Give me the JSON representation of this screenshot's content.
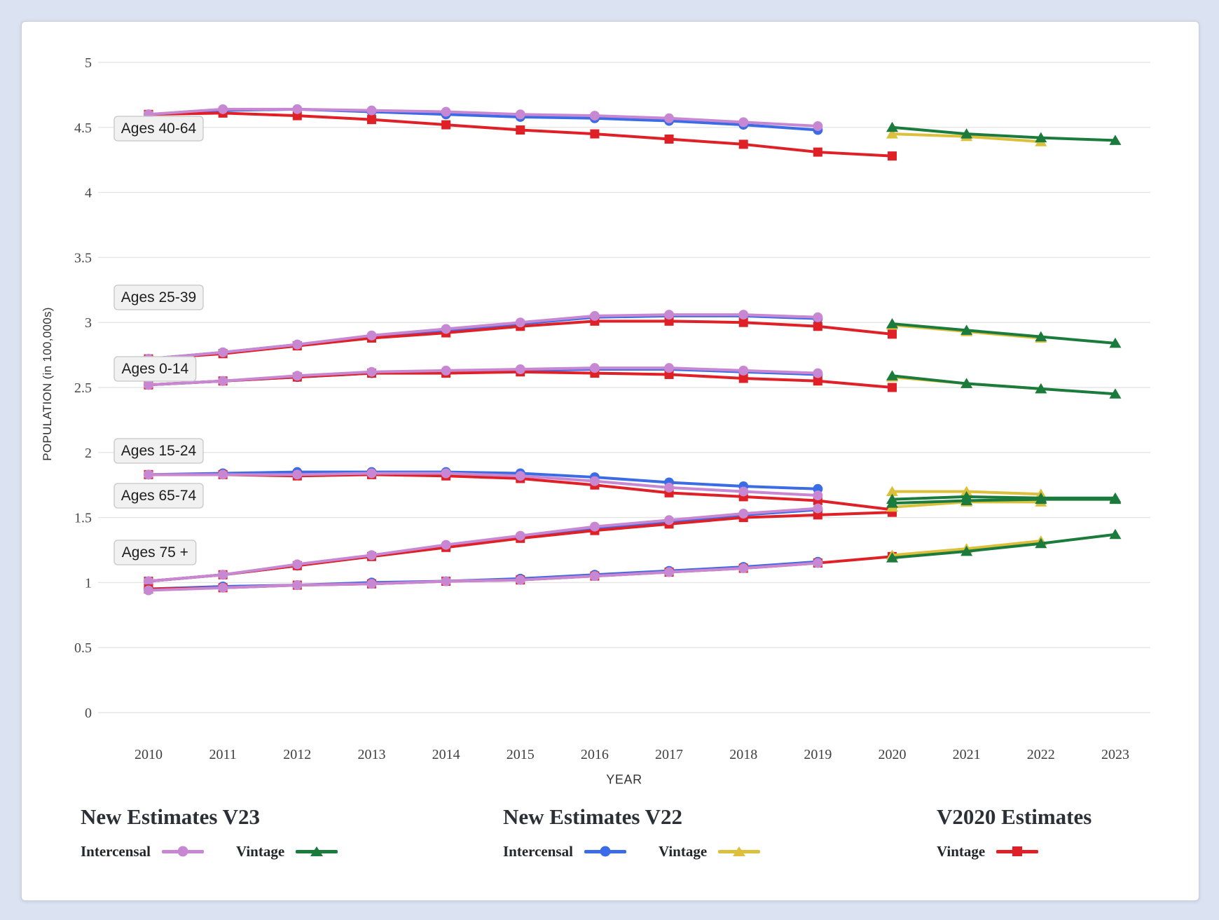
{
  "page": {
    "background": "#dbe2f1",
    "card_background": "#ffffff"
  },
  "chart": {
    "y_axis_title": "POPULATION (in 100,000s)",
    "x_axis_title": "YEAR",
    "y_ticks": [
      "5",
      "4.5",
      "4",
      "3.5",
      "3",
      "2.5",
      "2",
      "1.5",
      "1",
      "0.5",
      "0"
    ],
    "x_ticks": [
      "2010",
      "2011",
      "2012",
      "2013",
      "2014",
      "2015",
      "2016",
      "2017",
      "2018",
      "2019",
      "2020",
      "2021",
      "2022",
      "2023"
    ]
  },
  "colors": {
    "grid": "#e5e5e5",
    "tick_text": "#474747",
    "annotation_box_bg": "#f1f1f1",
    "annotation_box_border": "#c6c6c6",
    "annotation_text": "#1e1e1e",
    "v23_intercensal": "#c887d2",
    "v23_vintage": "#1b7b3d",
    "v22_intercensal": "#3c6be6",
    "v22_vintage": "#dcbf3b",
    "v2020_vintage": "#df2026"
  },
  "chart_data": {
    "type": "line",
    "title": "",
    "xlabel": "YEAR",
    "ylabel": "POPULATION (in 100,000s)",
    "x": [
      2010,
      2011,
      2012,
      2013,
      2014,
      2015,
      2016,
      2017,
      2018,
      2019,
      2020,
      2021,
      2022,
      2023
    ],
    "ylim": [
      0,
      5
    ],
    "grid": "horizontal",
    "legend_position": "bottom",
    "series_styles": {
      "v23_intercensal": {
        "color": "#c887d2",
        "marker": "circle",
        "legend_group": "New Estimates V23",
        "legend_label": "Intercensal"
      },
      "v23_vintage": {
        "color": "#1b7b3d",
        "marker": "triangle",
        "legend_group": "New Estimates V23",
        "legend_label": "Vintage"
      },
      "v22_intercensal": {
        "color": "#3c6be6",
        "marker": "circle",
        "legend_group": "New Estimates V22",
        "legend_label": "Intercensal"
      },
      "v22_vintage": {
        "color": "#dcbf3b",
        "marker": "triangle",
        "legend_group": "New Estimates V22",
        "legend_label": "Vintage"
      },
      "v2020_vintage": {
        "color": "#df2026",
        "marker": "square",
        "legend_group": "V2020 Estimates",
        "legend_label": "Vintage"
      }
    },
    "groups": [
      {
        "label": "Ages 40-64",
        "series": [
          {
            "name": "v22_intercensal",
            "start_year": 2010,
            "values": [
              4.6,
              4.63,
              4.64,
              4.62,
              4.6,
              4.58,
              4.57,
              4.55,
              4.52,
              4.48
            ]
          },
          {
            "name": "v2020_vintage",
            "start_year": 2010,
            "values": [
              4.6,
              4.61,
              4.59,
              4.56,
              4.52,
              4.48,
              4.45,
              4.41,
              4.37,
              4.31,
              4.28
            ]
          },
          {
            "name": "v23_intercensal",
            "start_year": 2010,
            "values": [
              4.6,
              4.64,
              4.64,
              4.63,
              4.62,
              4.6,
              4.59,
              4.57,
              4.54,
              4.51
            ]
          },
          {
            "name": "v22_vintage",
            "start_year": 2020,
            "values": [
              4.45,
              4.43,
              4.39
            ]
          },
          {
            "name": "v23_vintage",
            "start_year": 2020,
            "values": [
              4.5,
              4.45,
              4.42,
              4.4
            ]
          }
        ]
      },
      {
        "label": "Ages 25-39",
        "series": [
          {
            "name": "v22_intercensal",
            "start_year": 2010,
            "values": [
              2.72,
              2.77,
              2.83,
              2.89,
              2.94,
              2.99,
              3.04,
              3.05,
              3.05,
              3.03
            ]
          },
          {
            "name": "v2020_vintage",
            "start_year": 2010,
            "values": [
              2.72,
              2.76,
              2.82,
              2.88,
              2.92,
              2.97,
              3.01,
              3.01,
              3.0,
              2.97,
              2.91
            ]
          },
          {
            "name": "v23_intercensal",
            "start_year": 2010,
            "values": [
              2.72,
              2.77,
              2.83,
              2.9,
              2.95,
              3.0,
              3.05,
              3.06,
              3.06,
              3.04
            ]
          },
          {
            "name": "v22_vintage",
            "start_year": 2020,
            "values": [
              2.98,
              2.93,
              2.88
            ]
          },
          {
            "name": "v23_vintage",
            "start_year": 2020,
            "values": [
              2.99,
              2.94,
              2.89,
              2.84
            ]
          }
        ]
      },
      {
        "label": "Ages 0-14",
        "series": [
          {
            "name": "v22_intercensal",
            "start_year": 2010,
            "values": [
              2.52,
              2.55,
              2.58,
              2.61,
              2.62,
              2.63,
              2.64,
              2.64,
              2.62,
              2.6
            ]
          },
          {
            "name": "v2020_vintage",
            "start_year": 2010,
            "values": [
              2.52,
              2.55,
              2.58,
              2.61,
              2.61,
              2.62,
              2.61,
              2.6,
              2.57,
              2.55,
              2.5
            ]
          },
          {
            "name": "v23_intercensal",
            "start_year": 2010,
            "values": [
              2.52,
              2.55,
              2.59,
              2.62,
              2.63,
              2.64,
              2.65,
              2.65,
              2.63,
              2.61
            ]
          },
          {
            "name": "v22_vintage",
            "start_year": 2020,
            "values": [
              2.58,
              2.53,
              2.49
            ]
          },
          {
            "name": "v23_vintage",
            "start_year": 2020,
            "values": [
              2.59,
              2.53,
              2.49,
              2.45
            ]
          }
        ]
      },
      {
        "label": "Ages 15-24",
        "series": [
          {
            "name": "v22_intercensal",
            "start_year": 2010,
            "values": [
              1.83,
              1.84,
              1.85,
              1.85,
              1.85,
              1.84,
              1.81,
              1.77,
              1.74,
              1.72
            ]
          },
          {
            "name": "v2020_vintage",
            "start_year": 2010,
            "values": [
              1.83,
              1.83,
              1.82,
              1.83,
              1.82,
              1.8,
              1.75,
              1.69,
              1.66,
              1.63,
              1.56
            ]
          },
          {
            "name": "v23_intercensal",
            "start_year": 2010,
            "values": [
              1.83,
              1.83,
              1.83,
              1.84,
              1.84,
              1.82,
              1.78,
              1.73,
              1.7,
              1.67
            ]
          },
          {
            "name": "v22_vintage",
            "start_year": 2020,
            "values": [
              1.7,
              1.7,
              1.68
            ]
          },
          {
            "name": "v23_vintage",
            "start_year": 2020,
            "values": [
              1.64,
              1.66,
              1.65,
              1.65
            ]
          }
        ]
      },
      {
        "label": "Ages 65-74",
        "series": [
          {
            "name": "v22_intercensal",
            "start_year": 2010,
            "values": [
              1.01,
              1.06,
              1.13,
              1.21,
              1.28,
              1.35,
              1.42,
              1.47,
              1.52,
              1.56
            ]
          },
          {
            "name": "v2020_vintage",
            "start_year": 2010,
            "values": [
              1.01,
              1.06,
              1.13,
              1.2,
              1.27,
              1.34,
              1.4,
              1.45,
              1.5,
              1.52,
              1.54
            ]
          },
          {
            "name": "v23_intercensal",
            "start_year": 2010,
            "values": [
              1.01,
              1.06,
              1.14,
              1.21,
              1.29,
              1.36,
              1.43,
              1.48,
              1.53,
              1.57
            ]
          },
          {
            "name": "v22_vintage",
            "start_year": 2020,
            "values": [
              1.58,
              1.62,
              1.62
            ]
          },
          {
            "name": "v23_vintage",
            "start_year": 2020,
            "values": [
              1.61,
              1.63,
              1.64,
              1.64
            ]
          }
        ]
      },
      {
        "label": "Ages 75 +",
        "series": [
          {
            "name": "v22_intercensal",
            "start_year": 2010,
            "values": [
              0.95,
              0.97,
              0.98,
              1.0,
              1.01,
              1.03,
              1.06,
              1.09,
              1.12,
              1.16
            ]
          },
          {
            "name": "v2020_vintage",
            "start_year": 2010,
            "values": [
              0.95,
              0.96,
              0.98,
              0.99,
              1.01,
              1.02,
              1.05,
              1.08,
              1.11,
              1.15,
              1.2
            ]
          },
          {
            "name": "v23_intercensal",
            "start_year": 2010,
            "values": [
              0.94,
              0.96,
              0.98,
              0.99,
              1.01,
              1.02,
              1.05,
              1.08,
              1.11,
              1.15
            ]
          },
          {
            "name": "v22_vintage",
            "start_year": 2020,
            "values": [
              1.21,
              1.26,
              1.32
            ]
          },
          {
            "name": "v23_vintage",
            "start_year": 2020,
            "values": [
              1.19,
              1.24,
              1.3,
              1.37
            ]
          }
        ]
      }
    ]
  },
  "legend": {
    "groups": [
      {
        "title": "New Estimates V23",
        "items": [
          {
            "label": "Intercensal",
            "series": "v23_intercensal"
          },
          {
            "label": "Vintage",
            "series": "v23_vintage"
          }
        ]
      },
      {
        "title": "New Estimates V22",
        "items": [
          {
            "label": "Intercensal",
            "series": "v22_intercensal"
          },
          {
            "label": "Vintage",
            "series": "v22_vintage"
          }
        ]
      },
      {
        "title": "V2020 Estimates",
        "items": [
          {
            "label": "Vintage",
            "series": "v2020_vintage"
          }
        ]
      }
    ]
  }
}
